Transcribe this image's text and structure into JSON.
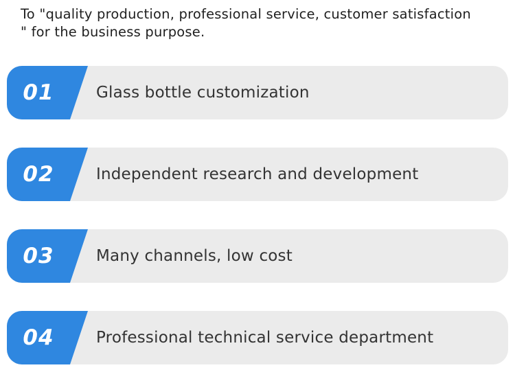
{
  "intro": {
    "line1": "To \"quality production, professional service, customer satisfaction",
    "line2": "\" for the business purpose."
  },
  "colors": {
    "accent_blue": "#2f87e0",
    "row_background": "#ebebeb",
    "text": "#333333"
  },
  "items": [
    {
      "number": "01",
      "label": "Glass bottle customization"
    },
    {
      "number": "02",
      "label": "Independent research and development"
    },
    {
      "number": "03",
      "label": "Many channels, low cost"
    },
    {
      "number": "04",
      "label": "Professional technical service department"
    }
  ]
}
